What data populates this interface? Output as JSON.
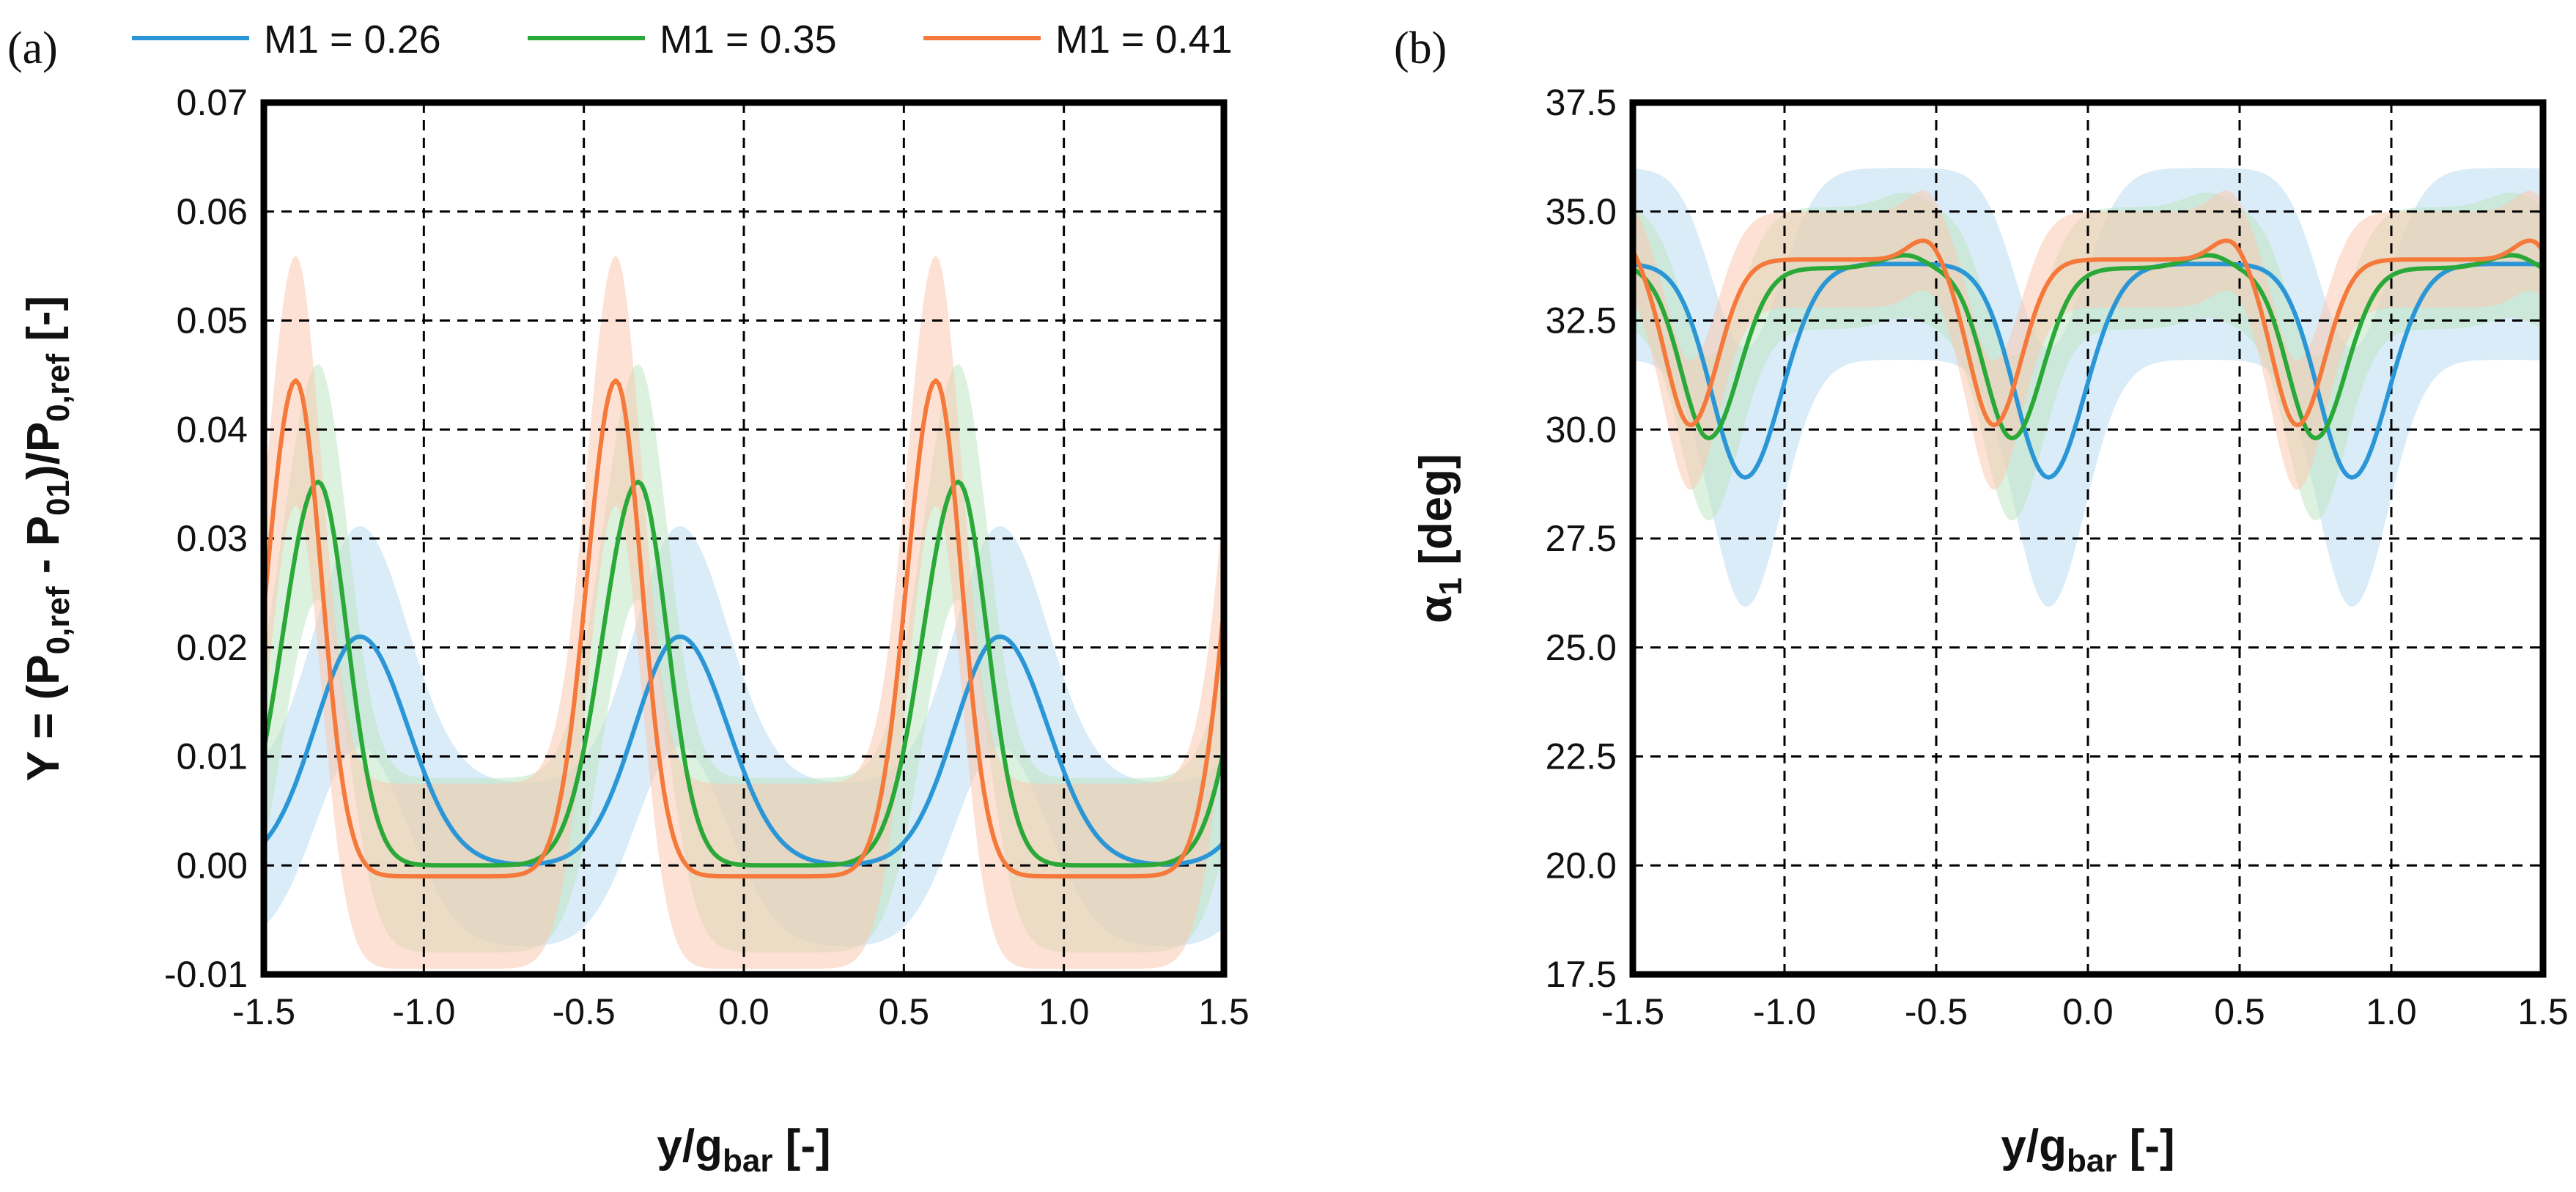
{
  "legend": [
    {
      "label": "M1 = 0.26",
      "color": "#2a96d6"
    },
    {
      "label": "M1 = 0.35",
      "color": "#2aa838"
    },
    {
      "label": "M1 = 0.41",
      "color": "#f5793a"
    }
  ],
  "band_colors": [
    "#b9dcf2",
    "#bfe6c3",
    "#fac9b0"
  ],
  "chart_data": [
    {
      "panel": "(a)",
      "type": "line",
      "xlabel": {
        "main": "y/g",
        "sub": "bar",
        "tail": " [-]"
      },
      "ylabel": "Y = (P0,ref - P01)/P0,ref [-]",
      "ylabel_parts": [
        {
          "t": "Y = (P",
          "sub": false
        },
        {
          "t": "0,ref",
          "sub": true
        },
        {
          "t": " - P",
          "sub": false
        },
        {
          "t": "01",
          "sub": true
        },
        {
          "t": ")/P",
          "sub": false
        },
        {
          "t": "0,ref",
          "sub": true
        },
        {
          "t": " [-]",
          "sub": false
        }
      ],
      "xlim": [
        -1.5,
        1.5
      ],
      "ylim": [
        -0.01,
        0.07
      ],
      "xticks": [
        -1.5,
        -1.0,
        -0.5,
        0.0,
        0.5,
        1.0,
        1.5
      ],
      "xtick_labels": [
        "-1.5",
        "-1.0",
        "-0.5",
        "0.0",
        "0.5",
        "1.0",
        "1.5"
      ],
      "yticks": [
        -0.01,
        0.0,
        0.01,
        0.02,
        0.03,
        0.04,
        0.05,
        0.06,
        0.07
      ],
      "ytick_labels": [
        "-0.01",
        "0.00",
        "0.01",
        "0.02",
        "0.03",
        "0.04",
        "0.05",
        "0.06",
        "0.07"
      ],
      "grid": "dashed",
      "period": 1.0,
      "series": [
        {
          "name": "M1 = 0.26",
          "baseline": 0.0,
          "peaks": [
            {
              "x": -0.2,
              "amp": 0.021,
              "wl": 0.14,
              "wr": 0.15
            }
          ],
          "band": 0.0075
        },
        {
          "name": "M1 = 0.35",
          "baseline": 0.0,
          "peaks": [
            {
              "x": -0.33,
              "amp": 0.0352,
              "wl": 0.11,
              "wr": 0.09
            }
          ],
          "band": 0.008
        },
        {
          "name": "M1 = 0.41",
          "baseline": -0.001,
          "peaks": [
            {
              "x": -0.4,
              "amp": 0.0455,
              "wl": 0.09,
              "wr": 0.08
            }
          ],
          "band": 0.0085
        }
      ]
    },
    {
      "panel": "(b)",
      "type": "line",
      "xlabel": {
        "main": "y/g",
        "sub": "bar",
        "tail": " [-]"
      },
      "ylabel": "α1 [deg]",
      "ylabel_parts": [
        {
          "t": "α",
          "sub": false
        },
        {
          "t": "1",
          "sub": true
        },
        {
          "t": " [deg]",
          "sub": false
        }
      ],
      "xlim": [
        -1.5,
        1.5
      ],
      "ylim": [
        17.5,
        37.5
      ],
      "xticks": [
        -1.5,
        -1.0,
        -0.5,
        0.0,
        0.5,
        1.0,
        1.5
      ],
      "xtick_labels": [
        "-1.5",
        "-1.0",
        "-0.5",
        "0.0",
        "0.5",
        "1.0",
        "1.5"
      ],
      "yticks": [
        17.5,
        20.0,
        22.5,
        25.0,
        27.5,
        30.0,
        32.5,
        35.0,
        37.5
      ],
      "ytick_labels": [
        "17.5",
        "20.0",
        "22.5",
        "25.0",
        "27.5",
        "30.0",
        "32.5",
        "35.0",
        "37.5"
      ],
      "grid": "dashed",
      "period": 1.0,
      "series": [
        {
          "name": "M1 = 0.26",
          "baseline": 33.8,
          "peaks": [
            {
              "x": -0.13,
              "amp": -4.9,
              "wl": 0.11,
              "wr": 0.12
            }
          ],
          "band": 2.2
        },
        {
          "name": "M1 = 0.35",
          "baseline": 33.7,
          "peaks": [
            {
              "x": -0.25,
              "amp": -3.9,
              "wl": 0.09,
              "wr": 0.1
            },
            {
              "x": -0.6,
              "amp": 0.3,
              "wl": 0.08,
              "wr": 0.06
            }
          ],
          "band": 1.4
        },
        {
          "name": "M1 = 0.41",
          "baseline": 33.9,
          "peaks": [
            {
              "x": -0.31,
              "amp": -3.8,
              "wl": 0.08,
              "wr": 0.09
            },
            {
              "x": -0.53,
              "amp": 0.5,
              "wl": 0.06,
              "wr": 0.05
            }
          ],
          "band": 1.1
        }
      ]
    }
  ]
}
